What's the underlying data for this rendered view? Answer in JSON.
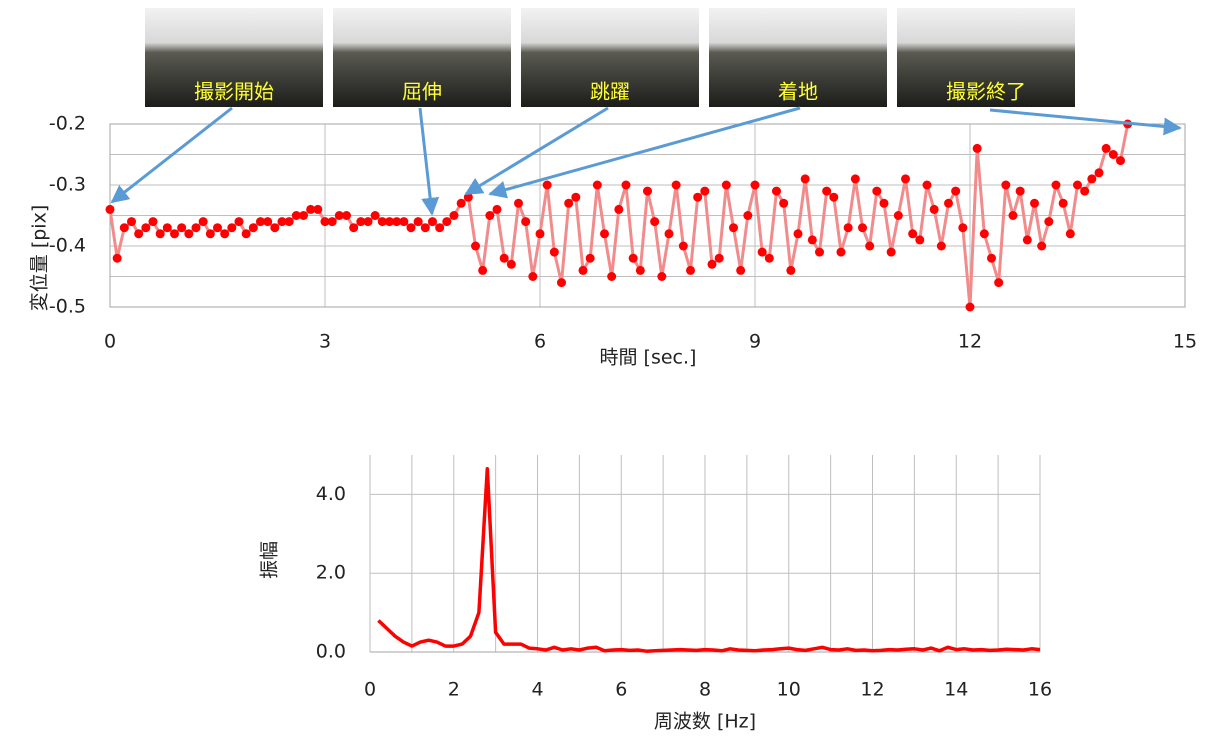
{
  "chart_data": [
    {
      "type": "line",
      "y_label": "変位量 [pix]",
      "x_label": "時間 [sec.]",
      "annotations": [
        "撮影開始",
        "屈伸",
        "跳躍",
        "着地",
        "撮影終了"
      ],
      "x": [
        0,
        0.1,
        0.2,
        0.3,
        0.4,
        0.5,
        0.6,
        0.7,
        0.8,
        0.9,
        1,
        1.1,
        1.2,
        1.3,
        1.4,
        1.5,
        1.6,
        1.7,
        1.8,
        1.9,
        2,
        2.1,
        2.2,
        2.3,
        2.4,
        2.5,
        2.6,
        2.7,
        2.8,
        2.9,
        3,
        3.1,
        3.2,
        3.3,
        3.4,
        3.5,
        3.6,
        3.7,
        3.8,
        3.9,
        4,
        4.1,
        4.2,
        4.3,
        4.4,
        4.5,
        4.6,
        4.7,
        4.8,
        4.9,
        5,
        5.1,
        5.2,
        5.3,
        5.4,
        5.5,
        5.6,
        5.7,
        5.8,
        5.9,
        6,
        6.1,
        6.2,
        6.3,
        6.4,
        6.5,
        6.6,
        6.7,
        6.8,
        6.9,
        7,
        7.1,
        7.2,
        7.3,
        7.4,
        7.5,
        7.6,
        7.7,
        7.8,
        7.9,
        8,
        8.1,
        8.2,
        8.3,
        8.4,
        8.5,
        8.6,
        8.7,
        8.8,
        8.9,
        9,
        9.1,
        9.2,
        9.3,
        9.4,
        9.5,
        9.6,
        9.7,
        9.8,
        9.9,
        10,
        10.1,
        10.2,
        10.3,
        10.4,
        10.5,
        10.6,
        10.7,
        10.8,
        10.9,
        11,
        11.1,
        11.2,
        11.3,
        11.4,
        11.5,
        11.6,
        11.7,
        11.8,
        11.9,
        12,
        12.1,
        12.2,
        12.3,
        12.4,
        12.5,
        12.6,
        12.7,
        12.8,
        12.9,
        13,
        13.1,
        13.2,
        13.3,
        13.4,
        13.5,
        13.6,
        13.7,
        13.8,
        13.9,
        14,
        14.1,
        14.2
      ],
      "values": [
        -0.34,
        -0.42,
        -0.37,
        -0.36,
        -0.38,
        -0.37,
        -0.36,
        -0.38,
        -0.37,
        -0.38,
        -0.37,
        -0.38,
        -0.37,
        -0.36,
        -0.38,
        -0.37,
        -0.38,
        -0.37,
        -0.36,
        -0.38,
        -0.37,
        -0.36,
        -0.36,
        -0.37,
        -0.36,
        -0.36,
        -0.35,
        -0.35,
        -0.34,
        -0.34,
        -0.36,
        -0.36,
        -0.35,
        -0.35,
        -0.37,
        -0.36,
        -0.36,
        -0.35,
        -0.36,
        -0.36,
        -0.36,
        -0.36,
        -0.37,
        -0.36,
        -0.37,
        -0.36,
        -0.37,
        -0.36,
        -0.35,
        -0.33,
        -0.32,
        -0.4,
        -0.44,
        -0.35,
        -0.34,
        -0.42,
        -0.43,
        -0.33,
        -0.36,
        -0.45,
        -0.38,
        -0.3,
        -0.41,
        -0.46,
        -0.33,
        -0.32,
        -0.44,
        -0.42,
        -0.3,
        -0.38,
        -0.45,
        -0.34,
        -0.3,
        -0.42,
        -0.44,
        -0.31,
        -0.36,
        -0.45,
        -0.38,
        -0.3,
        -0.4,
        -0.44,
        -0.32,
        -0.31,
        -0.43,
        -0.42,
        -0.3,
        -0.37,
        -0.44,
        -0.35,
        -0.3,
        -0.41,
        -0.42,
        -0.31,
        -0.33,
        -0.44,
        -0.38,
        -0.29,
        -0.39,
        -0.41,
        -0.31,
        -0.32,
        -0.41,
        -0.37,
        -0.29,
        -0.37,
        -0.4,
        -0.31,
        -0.33,
        -0.41,
        -0.35,
        -0.29,
        -0.38,
        -0.39,
        -0.3,
        -0.34,
        -0.4,
        -0.33,
        -0.31,
        -0.37,
        -0.5,
        -0.24,
        -0.38,
        -0.42,
        -0.46,
        -0.3,
        -0.35,
        -0.31,
        -0.39,
        -0.33,
        -0.4,
        -0.36,
        -0.3,
        -0.33,
        -0.38,
        -0.3,
        -0.31,
        -0.29,
        -0.28,
        -0.24,
        -0.25,
        -0.26,
        -0.2
      ],
      "color": "#f28b8b",
      "marker_color": "#ff0000",
      "xlim": [
        0,
        15
      ],
      "xticks": [
        0,
        3,
        6,
        9,
        12,
        15
      ],
      "ylim": [
        -0.5,
        -0.2
      ],
      "yticks": [
        {
          "value": -0.2,
          "label": "-0.2"
        },
        {
          "value": -0.3,
          "label": "-0.3"
        },
        {
          "value": -0.4,
          "label": "-0.4"
        },
        {
          "value": -0.5,
          "label": "-0.5"
        }
      ],
      "minor_yticks": [
        -0.25,
        -0.35,
        -0.45
      ],
      "grid": true
    },
    {
      "type": "line",
      "y_label": "振幅",
      "x_label": "周波数 [Hz]",
      "x": [
        0.2,
        0.4,
        0.6,
        0.8,
        1,
        1.2,
        1.4,
        1.6,
        1.8,
        2,
        2.2,
        2.4,
        2.6,
        2.8,
        3,
        3.2,
        3.4,
        3.6,
        3.8,
        4,
        4.2,
        4.4,
        4.6,
        4.8,
        5,
        5.2,
        5.4,
        5.6,
        5.8,
        6,
        6.2,
        6.4,
        6.6,
        6.8,
        7,
        7.2,
        7.4,
        7.6,
        7.8,
        8,
        8.2,
        8.4,
        8.6,
        8.8,
        9,
        9.2,
        9.4,
        9.6,
        9.8,
        10,
        10.2,
        10.4,
        10.6,
        10.8,
        11,
        11.2,
        11.4,
        11.6,
        11.8,
        12,
        12.2,
        12.4,
        12.6,
        12.8,
        13,
        13.2,
        13.4,
        13.6,
        13.8,
        14,
        14.2,
        14.4,
        14.6,
        14.8,
        15,
        15.2,
        15.4,
        15.6,
        15.8,
        16
      ],
      "values": [
        0.8,
        0.6,
        0.4,
        0.25,
        0.15,
        0.25,
        0.3,
        0.25,
        0.15,
        0.15,
        0.2,
        0.4,
        1.0,
        4.65,
        0.5,
        0.2,
        0.2,
        0.2,
        0.1,
        0.08,
        0.05,
        0.12,
        0.05,
        0.08,
        0.05,
        0.1,
        0.12,
        0.03,
        0.05,
        0.06,
        0.04,
        0.05,
        0.02,
        0.03,
        0.04,
        0.05,
        0.06,
        0.05,
        0.04,
        0.06,
        0.05,
        0.03,
        0.08,
        0.05,
        0.04,
        0.03,
        0.05,
        0.06,
        0.08,
        0.1,
        0.06,
        0.04,
        0.08,
        0.12,
        0.06,
        0.05,
        0.08,
        0.04,
        0.05,
        0.03,
        0.04,
        0.06,
        0.05,
        0.07,
        0.08,
        0.05,
        0.1,
        0.03,
        0.12,
        0.06,
        0.08,
        0.05,
        0.06,
        0.04,
        0.05,
        0.07,
        0.06,
        0.05,
        0.08,
        0.06
      ],
      "color": "#ff0000",
      "xlim": [
        0,
        16
      ],
      "xticks": [
        0,
        2,
        4,
        6,
        8,
        10,
        12,
        14,
        16
      ],
      "minor_xticks": [
        1,
        3,
        5,
        7,
        9,
        11,
        13,
        15
      ],
      "ylim": [
        0,
        5
      ],
      "yticks": [
        {
          "value": 0,
          "label": "0.0"
        },
        {
          "value": 2,
          "label": "2.0"
        },
        {
          "value": 4,
          "label": "4.0"
        }
      ],
      "grid": true
    }
  ]
}
